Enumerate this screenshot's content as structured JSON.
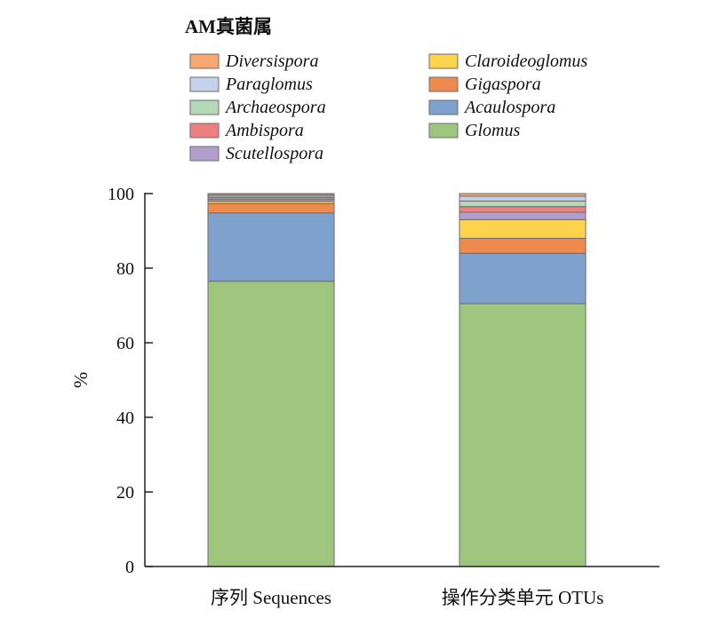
{
  "chart_data": {
    "type": "bar",
    "stacked": true,
    "legend_title": "AM真菌属",
    "legend_placement": "top",
    "ylabel": "%",
    "xlabel": "",
    "ylim": [
      0,
      100
    ],
    "yticks": [
      0,
      20,
      40,
      60,
      80,
      100
    ],
    "ytick_labels": [
      "0",
      "20",
      "40",
      "60",
      "80",
      "100"
    ],
    "grid": false,
    "categories": [
      "序列 Sequences",
      "操作分类单元 OTUs"
    ],
    "series": [
      {
        "name": "Glomus",
        "color": "#9dc57e",
        "values": [
          76.5,
          70.5
        ]
      },
      {
        "name": "Acaulospora",
        "color": "#7fa1cd",
        "values": [
          18.3,
          13.5
        ]
      },
      {
        "name": "Gigaspora",
        "color": "#ee8a4e",
        "values": [
          2.5,
          4.0
        ]
      },
      {
        "name": "Claroideoglomus",
        "color": "#fcd34a",
        "values": [
          0.6,
          5.0
        ]
      },
      {
        "name": "Scutellospora",
        "color": "#b09fcd",
        "values": [
          0.5,
          2.0
        ]
      },
      {
        "name": "Ambispora",
        "color": "#ef7f7e",
        "values": [
          0.5,
          1.5
        ]
      },
      {
        "name": "Archaeospora",
        "color": "#b5d8b8",
        "values": [
          0.4,
          1.5
        ]
      },
      {
        "name": "Paraglomus",
        "color": "#c4d1ea",
        "values": [
          0.4,
          1.3
        ]
      },
      {
        "name": "Diversispora",
        "color": "#f7a870",
        "values": [
          0.3,
          0.7
        ]
      }
    ],
    "legend_order": [
      "Diversispora",
      "Claroideoglomus",
      "Paraglomus",
      "Gigaspora",
      "Archaeospora",
      "Acaulospora",
      "Ambispora",
      "Glomus",
      "Scutellospora"
    ]
  }
}
